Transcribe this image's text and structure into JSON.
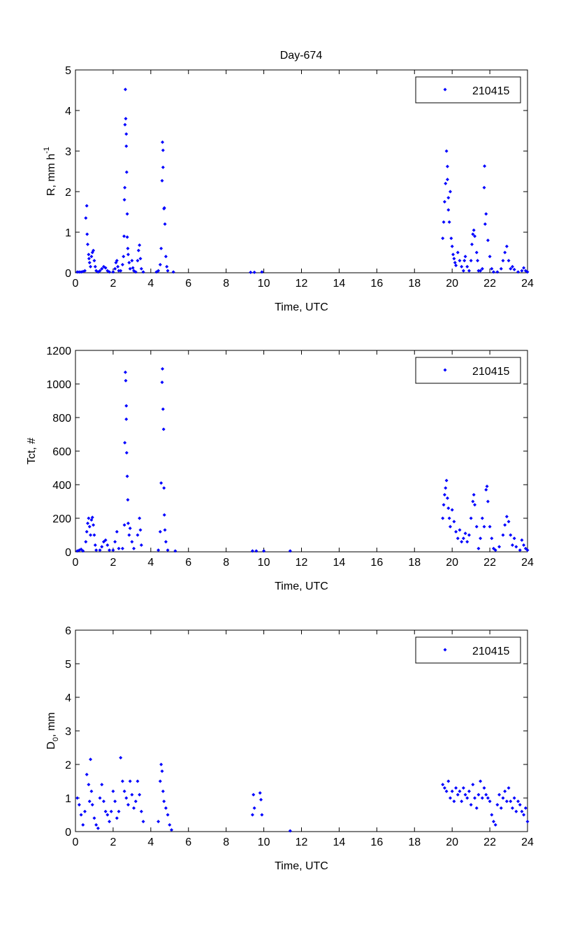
{
  "title": "Day-674",
  "chart_data": [
    {
      "type": "scatter",
      "ylabel": "R, mm h",
      "ylabel_sup": "-1",
      "xlabel": "Time, UTC",
      "xlim": [
        0,
        24
      ],
      "ylim": [
        0,
        5
      ],
      "xticks": [
        0,
        2,
        4,
        6,
        8,
        10,
        12,
        14,
        16,
        18,
        20,
        22,
        24
      ],
      "yticks": [
        0,
        1,
        2,
        3,
        4,
        5
      ],
      "legend": "210415",
      "legend_position": "top-right",
      "color": "#0000ff",
      "points": [
        [
          0.1,
          0.02
        ],
        [
          0.2,
          0.02
        ],
        [
          0.3,
          0.02
        ],
        [
          0.4,
          0.03
        ],
        [
          0.5,
          0.05
        ],
        [
          0.55,
          1.35
        ],
        [
          0.6,
          1.65
        ],
        [
          0.62,
          0.95
        ],
        [
          0.65,
          0.7
        ],
        [
          0.7,
          0.45
        ],
        [
          0.72,
          0.35
        ],
        [
          0.75,
          0.25
        ],
        [
          0.8,
          0.15
        ],
        [
          0.85,
          0.4
        ],
        [
          0.9,
          0.5
        ],
        [
          0.95,
          0.55
        ],
        [
          1.0,
          0.3
        ],
        [
          1.05,
          0.15
        ],
        [
          1.1,
          0.05
        ],
        [
          1.2,
          0.02
        ],
        [
          1.3,
          0.05
        ],
        [
          1.4,
          0.1
        ],
        [
          1.5,
          0.15
        ],
        [
          1.6,
          0.12
        ],
        [
          1.7,
          0.05
        ],
        [
          1.8,
          0.02
        ],
        [
          2.0,
          0.02
        ],
        [
          2.1,
          0.1
        ],
        [
          2.15,
          0.25
        ],
        [
          2.2,
          0.3
        ],
        [
          2.25,
          0.15
        ],
        [
          2.3,
          0.05
        ],
        [
          2.4,
          0.05
        ],
        [
          2.5,
          0.2
        ],
        [
          2.55,
          0.4
        ],
        [
          2.58,
          0.9
        ],
        [
          2.6,
          1.8
        ],
        [
          2.62,
          2.1
        ],
        [
          2.63,
          3.65
        ],
        [
          2.67,
          3.8
        ],
        [
          2.65,
          4.52
        ],
        [
          2.7,
          3.42
        ],
        [
          2.7,
          3.12
        ],
        [
          2.72,
          2.48
        ],
        [
          2.75,
          1.45
        ],
        [
          2.75,
          0.88
        ],
        [
          2.78,
          0.6
        ],
        [
          2.8,
          0.45
        ],
        [
          2.85,
          0.25
        ],
        [
          2.9,
          0.1
        ],
        [
          3.0,
          0.3
        ],
        [
          3.05,
          0.12
        ],
        [
          3.1,
          0.05
        ],
        [
          3.2,
          0.02
        ],
        [
          3.3,
          0.3
        ],
        [
          3.35,
          0.55
        ],
        [
          3.4,
          0.68
        ],
        [
          3.45,
          0.35
        ],
        [
          3.5,
          0.1
        ],
        [
          3.6,
          0.02
        ],
        [
          4.3,
          0.02
        ],
        [
          4.4,
          0.05
        ],
        [
          4.5,
          0.2
        ],
        [
          4.55,
          0.6
        ],
        [
          4.6,
          2.27
        ],
        [
          4.62,
          3.22
        ],
        [
          4.65,
          3.02
        ],
        [
          4.65,
          2.6
        ],
        [
          4.7,
          1.58
        ],
        [
          4.72,
          1.6
        ],
        [
          4.75,
          1.2
        ],
        [
          4.8,
          0.4
        ],
        [
          4.85,
          0.15
        ],
        [
          4.9,
          0.05
        ],
        [
          5.2,
          0.02
        ],
        [
          9.3,
          0.01
        ],
        [
          9.5,
          0.01
        ],
        [
          9.9,
          0.02
        ],
        [
          19.5,
          0.85
        ],
        [
          19.55,
          1.25
        ],
        [
          19.6,
          1.75
        ],
        [
          19.65,
          2.2
        ],
        [
          19.7,
          3.0
        ],
        [
          19.75,
          2.62
        ],
        [
          19.75,
          2.3
        ],
        [
          19.8,
          1.85
        ],
        [
          19.8,
          1.55
        ],
        [
          19.85,
          1.25
        ],
        [
          19.9,
          2.0
        ],
        [
          19.95,
          0.85
        ],
        [
          20.0,
          0.65
        ],
        [
          20.05,
          0.45
        ],
        [
          20.1,
          0.35
        ],
        [
          20.15,
          0.25
        ],
        [
          20.2,
          0.18
        ],
        [
          20.3,
          0.5
        ],
        [
          20.4,
          0.3
        ],
        [
          20.5,
          0.15
        ],
        [
          20.6,
          0.05
        ],
        [
          20.65,
          0.3
        ],
        [
          20.7,
          0.4
        ],
        [
          20.8,
          0.15
        ],
        [
          20.9,
          0.05
        ],
        [
          21.0,
          0.3
        ],
        [
          21.05,
          0.7
        ],
        [
          21.1,
          0.95
        ],
        [
          21.15,
          1.05
        ],
        [
          21.2,
          0.9
        ],
        [
          21.3,
          0.5
        ],
        [
          21.35,
          0.3
        ],
        [
          21.4,
          0.05
        ],
        [
          21.5,
          0.05
        ],
        [
          21.6,
          0.1
        ],
        [
          21.7,
          2.1
        ],
        [
          21.72,
          2.63
        ],
        [
          21.75,
          1.2
        ],
        [
          21.8,
          1.45
        ],
        [
          21.9,
          0.8
        ],
        [
          22.0,
          0.4
        ],
        [
          22.1,
          0.1
        ],
        [
          22.2,
          0.02
        ],
        [
          22.4,
          0.02
        ],
        [
          22.6,
          0.1
        ],
        [
          22.7,
          0.3
        ],
        [
          22.8,
          0.5
        ],
        [
          22.9,
          0.65
        ],
        [
          23.0,
          0.3
        ],
        [
          23.1,
          0.1
        ],
        [
          23.2,
          0.15
        ],
        [
          23.3,
          0.08
        ],
        [
          23.5,
          0.02
        ],
        [
          23.7,
          0.05
        ],
        [
          23.8,
          0.12
        ],
        [
          23.9,
          0.05
        ],
        [
          24.0,
          0.02
        ]
      ]
    },
    {
      "type": "scatter",
      "ylabel": "Tct, #",
      "xlabel": "Time, UTC",
      "xlim": [
        0,
        24
      ],
      "ylim": [
        0,
        1200
      ],
      "xticks": [
        0,
        2,
        4,
        6,
        8,
        10,
        12,
        14,
        16,
        18,
        20,
        22,
        24
      ],
      "yticks": [
        0,
        200,
        400,
        600,
        800,
        1000,
        1200
      ],
      "legend": "210415",
      "legend_position": "top-right",
      "color": "#0000ff",
      "points": [
        [
          0.1,
          5
        ],
        [
          0.2,
          10
        ],
        [
          0.3,
          15
        ],
        [
          0.4,
          5
        ],
        [
          0.55,
          60
        ],
        [
          0.6,
          120
        ],
        [
          0.65,
          170
        ],
        [
          0.7,
          200
        ],
        [
          0.75,
          150
        ],
        [
          0.8,
          100
        ],
        [
          0.85,
          190
        ],
        [
          0.9,
          205
        ],
        [
          0.95,
          160
        ],
        [
          1.0,
          100
        ],
        [
          1.05,
          40
        ],
        [
          1.1,
          10
        ],
        [
          1.3,
          10
        ],
        [
          1.4,
          30
        ],
        [
          1.5,
          60
        ],
        [
          1.6,
          70
        ],
        [
          1.7,
          40
        ],
        [
          1.8,
          10
        ],
        [
          2.0,
          10
        ],
        [
          2.1,
          60
        ],
        [
          2.2,
          120
        ],
        [
          2.3,
          20
        ],
        [
          2.5,
          20
        ],
        [
          2.6,
          160
        ],
        [
          2.62,
          650
        ],
        [
          2.65,
          1070
        ],
        [
          2.67,
          1020
        ],
        [
          2.7,
          870
        ],
        [
          2.7,
          790
        ],
        [
          2.72,
          590
        ],
        [
          2.75,
          450
        ],
        [
          2.78,
          310
        ],
        [
          2.8,
          170
        ],
        [
          2.85,
          100
        ],
        [
          2.9,
          140
        ],
        [
          3.0,
          60
        ],
        [
          3.1,
          20
        ],
        [
          3.3,
          100
        ],
        [
          3.4,
          200
        ],
        [
          3.45,
          130
        ],
        [
          3.5,
          40
        ],
        [
          4.4,
          10
        ],
        [
          4.5,
          120
        ],
        [
          4.55,
          410
        ],
        [
          4.6,
          1010
        ],
        [
          4.62,
          1090
        ],
        [
          4.65,
          850
        ],
        [
          4.68,
          730
        ],
        [
          4.7,
          380
        ],
        [
          4.72,
          220
        ],
        [
          4.75,
          130
        ],
        [
          4.8,
          60
        ],
        [
          4.9,
          10
        ],
        [
          5.3,
          5
        ],
        [
          9.4,
          5
        ],
        [
          9.6,
          5
        ],
        [
          10.0,
          5
        ],
        [
          11.4,
          5
        ],
        [
          19.5,
          200
        ],
        [
          19.55,
          280
        ],
        [
          19.6,
          340
        ],
        [
          19.65,
          380
        ],
        [
          19.7,
          425
        ],
        [
          19.75,
          320
        ],
        [
          19.8,
          260
        ],
        [
          19.85,
          200
        ],
        [
          19.9,
          150
        ],
        [
          20.0,
          250
        ],
        [
          20.1,
          180
        ],
        [
          20.2,
          120
        ],
        [
          20.3,
          80
        ],
        [
          20.4,
          130
        ],
        [
          20.5,
          60
        ],
        [
          20.6,
          80
        ],
        [
          20.7,
          110
        ],
        [
          20.8,
          60
        ],
        [
          20.9,
          100
        ],
        [
          21.0,
          200
        ],
        [
          21.1,
          300
        ],
        [
          21.15,
          340
        ],
        [
          21.2,
          280
        ],
        [
          21.3,
          150
        ],
        [
          21.4,
          20
        ],
        [
          21.5,
          80
        ],
        [
          21.6,
          200
        ],
        [
          21.7,
          150
        ],
        [
          21.8,
          370
        ],
        [
          21.85,
          390
        ],
        [
          21.9,
          300
        ],
        [
          22.0,
          150
        ],
        [
          22.1,
          80
        ],
        [
          22.2,
          20
        ],
        [
          22.3,
          10
        ],
        [
          22.5,
          30
        ],
        [
          22.7,
          100
        ],
        [
          22.8,
          160
        ],
        [
          22.9,
          210
        ],
        [
          23.0,
          180
        ],
        [
          23.1,
          100
        ],
        [
          23.2,
          40
        ],
        [
          23.3,
          80
        ],
        [
          23.4,
          30
        ],
        [
          23.6,
          10
        ],
        [
          23.7,
          70
        ],
        [
          23.8,
          40
        ],
        [
          23.9,
          20
        ],
        [
          24.0,
          10
        ]
      ]
    },
    {
      "type": "scatter",
      "ylabel": "D",
      "ylabel_sub": "0",
      "ylabel_suffix": ", mm",
      "xlabel": "Time, UTC",
      "xlim": [
        0,
        24
      ],
      "ylim": [
        0,
        6
      ],
      "xticks": [
        0,
        2,
        4,
        6,
        8,
        10,
        12,
        14,
        16,
        18,
        20,
        22,
        24
      ],
      "yticks": [
        0,
        1,
        2,
        3,
        4,
        5,
        6
      ],
      "legend": "210415",
      "legend_position": "top-right",
      "color": "#0000ff",
      "points": [
        [
          0.1,
          1.0
        ],
        [
          0.2,
          0.8
        ],
        [
          0.3,
          0.5
        ],
        [
          0.4,
          0.2
        ],
        [
          0.5,
          0.6
        ],
        [
          0.6,
          1.7
        ],
        [
          0.7,
          1.4
        ],
        [
          0.75,
          0.9
        ],
        [
          0.8,
          2.15
        ],
        [
          0.85,
          1.2
        ],
        [
          0.9,
          0.8
        ],
        [
          1.0,
          0.4
        ],
        [
          1.1,
          0.2
        ],
        [
          1.2,
          0.1
        ],
        [
          1.3,
          1.0
        ],
        [
          1.4,
          1.4
        ],
        [
          1.5,
          0.9
        ],
        [
          1.6,
          0.6
        ],
        [
          1.7,
          0.5
        ],
        [
          1.8,
          0.3
        ],
        [
          1.9,
          0.6
        ],
        [
          2.0,
          1.2
        ],
        [
          2.1,
          0.9
        ],
        [
          2.2,
          0.4
        ],
        [
          2.3,
          0.6
        ],
        [
          2.4,
          2.2
        ],
        [
          2.5,
          1.5
        ],
        [
          2.6,
          1.2
        ],
        [
          2.7,
          1.0
        ],
        [
          2.8,
          0.8
        ],
        [
          2.9,
          1.5
        ],
        [
          3.0,
          1.1
        ],
        [
          3.1,
          0.7
        ],
        [
          3.2,
          0.9
        ],
        [
          3.3,
          1.5
        ],
        [
          3.4,
          1.1
        ],
        [
          3.5,
          0.6
        ],
        [
          3.6,
          0.3
        ],
        [
          4.4,
          0.3
        ],
        [
          4.5,
          1.5
        ],
        [
          4.55,
          2.0
        ],
        [
          4.6,
          1.8
        ],
        [
          4.65,
          1.2
        ],
        [
          4.7,
          0.9
        ],
        [
          4.8,
          0.7
        ],
        [
          4.9,
          0.5
        ],
        [
          5.0,
          0.2
        ],
        [
          5.1,
          0.05
        ],
        [
          9.4,
          0.5
        ],
        [
          9.45,
          1.1
        ],
        [
          9.5,
          0.7
        ],
        [
          9.8,
          1.15
        ],
        [
          9.85,
          0.95
        ],
        [
          9.9,
          0.5
        ],
        [
          11.4,
          0.02
        ],
        [
          19.5,
          1.4
        ],
        [
          19.6,
          1.3
        ],
        [
          19.7,
          1.2
        ],
        [
          19.8,
          1.5
        ],
        [
          19.9,
          1.0
        ],
        [
          20.0,
          1.2
        ],
        [
          20.1,
          0.9
        ],
        [
          20.2,
          1.3
        ],
        [
          20.3,
          1.1
        ],
        [
          20.4,
          1.2
        ],
        [
          20.5,
          0.9
        ],
        [
          20.6,
          1.3
        ],
        [
          20.7,
          1.1
        ],
        [
          20.8,
          1.0
        ],
        [
          20.9,
          1.2
        ],
        [
          21.0,
          0.8
        ],
        [
          21.1,
          1.4
        ],
        [
          21.2,
          1.0
        ],
        [
          21.3,
          0.7
        ],
        [
          21.4,
          1.1
        ],
        [
          21.5,
          1.5
        ],
        [
          21.6,
          1.0
        ],
        [
          21.7,
          1.3
        ],
        [
          21.8,
          1.1
        ],
        [
          21.9,
          1.0
        ],
        [
          22.0,
          0.9
        ],
        [
          22.1,
          0.5
        ],
        [
          22.2,
          0.3
        ],
        [
          22.3,
          0.2
        ],
        [
          22.4,
          0.8
        ],
        [
          22.5,
          1.1
        ],
        [
          22.6,
          0.7
        ],
        [
          22.7,
          1.0
        ],
        [
          22.8,
          1.2
        ],
        [
          22.9,
          0.9
        ],
        [
          23.0,
          1.3
        ],
        [
          23.1,
          0.9
        ],
        [
          23.2,
          0.7
        ],
        [
          23.3,
          1.0
        ],
        [
          23.4,
          0.6
        ],
        [
          23.5,
          0.9
        ],
        [
          23.6,
          0.8
        ],
        [
          23.7,
          0.6
        ],
        [
          23.8,
          0.5
        ],
        [
          23.9,
          0.7
        ],
        [
          24.0,
          0.3
        ]
      ]
    }
  ]
}
